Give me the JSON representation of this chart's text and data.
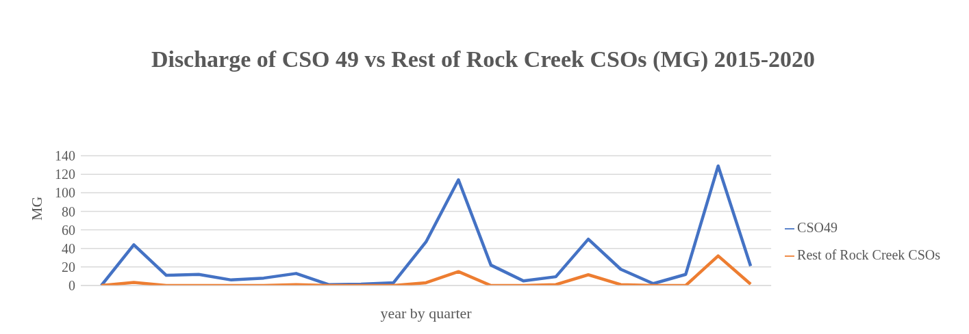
{
  "chart_data": {
    "type": "line",
    "title": "Discharge of CSO 49 vs Rest of Rock Creek CSOs (MG) 2015-2020",
    "xlabel": "year by quarter",
    "ylabel": "MG",
    "categories": [
      null,
      null,
      null,
      null,
      null,
      null,
      null,
      null,
      null,
      null,
      null,
      null,
      null,
      null,
      null,
      null,
      null,
      null,
      null,
      null,
      null
    ],
    "series": [
      {
        "name": "CSO49",
        "color": "#4472c4",
        "values": [
          0,
          44,
          11,
          12,
          6,
          8,
          13,
          1,
          1.5,
          3,
          47,
          114,
          22,
          5,
          9.5,
          50,
          17.5,
          2,
          12,
          129,
          21
        ]
      },
      {
        "name": "Rest of Rock Creek CSOs",
        "color": "#ed7d31",
        "values": [
          0,
          3.4,
          0,
          0,
          0,
          0,
          1,
          0,
          0,
          0,
          3,
          15,
          0,
          0,
          1,
          11.6,
          1,
          0,
          0,
          32,
          1.5
        ]
      }
    ],
    "ylim": [
      0,
      140
    ],
    "yticks": [
      0,
      20,
      40,
      60,
      80,
      100,
      120,
      140
    ],
    "grid": "y",
    "legend": "right",
    "marker": "none",
    "line_style": "solid"
  }
}
